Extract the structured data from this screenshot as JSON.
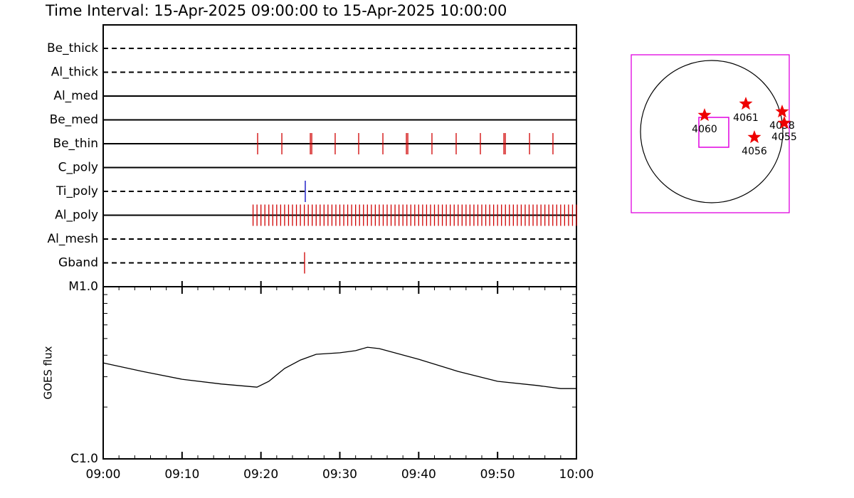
{
  "title": "Time Interval: 15-Apr-2025 09:00:00 to 15-Apr-2025 10:00:00",
  "chart_data": [
    {
      "type": "event",
      "xlim": [
        0,
        60
      ],
      "xticks": [
        0,
        10,
        20,
        30,
        40,
        50,
        60
      ],
      "series": [
        {
          "name": "Be_thick",
          "linestyle": "dashed",
          "x": []
        },
        {
          "name": "Al_thick",
          "linestyle": "dashed",
          "x": []
        },
        {
          "name": "Al_med",
          "linestyle": "solid",
          "x": []
        },
        {
          "name": "Be_med",
          "linestyle": "solid",
          "x": []
        },
        {
          "name": "Be_thin",
          "linestyle": "solid",
          "color": "#d00000",
          "x": [
            19.58,
            22.65,
            26.26,
            26.44,
            29.41,
            32.39,
            35.46,
            38.44,
            38.62,
            41.68,
            44.75,
            47.82,
            50.8,
            50.98,
            54.05,
            57.02
          ]
        },
        {
          "name": "C_poly",
          "linestyle": "solid",
          "x": []
        },
        {
          "name": "Ti_poly",
          "linestyle": "dashed",
          "color": "#0000c0",
          "x": [
            25.62
          ]
        },
        {
          "name": "Al_poly",
          "linestyle": "solid",
          "color": "#d00000",
          "x": [
            19,
            19.5,
            20,
            20.5,
            21,
            21.5,
            22,
            22.5,
            23,
            23.5,
            24,
            24.5,
            25,
            25.5,
            26,
            26.5,
            27,
            27.5,
            28,
            28.5,
            29,
            29.5,
            30,
            30.5,
            31,
            31.5,
            32,
            32.5,
            33,
            33.5,
            34,
            34.5,
            35,
            35.5,
            36,
            36.5,
            37,
            37.5,
            38,
            38.5,
            39,
            39.5,
            40,
            40.5,
            41,
            41.5,
            42,
            42.5,
            43,
            43.5,
            44,
            44.5,
            45,
            45.5,
            46,
            46.5,
            47,
            47.5,
            48,
            48.5,
            49,
            49.5,
            50,
            50.5,
            51,
            51.5,
            52,
            52.5,
            53,
            53.5,
            54,
            54.5,
            55,
            55.5,
            56,
            56.5,
            57,
            57.5,
            58,
            58.5,
            59,
            59.5,
            60
          ]
        },
        {
          "name": "Al_mesh",
          "linestyle": "dashed",
          "x": []
        },
        {
          "name": "Gband",
          "linestyle": "dashed",
          "color": "#d00000",
          "x": [
            25.53
          ]
        }
      ]
    },
    {
      "type": "line",
      "ylabel": "GOES flux",
      "log": true,
      "xlim": [
        0,
        60
      ],
      "xticks": [
        {
          "value": 0,
          "label": "09:00"
        },
        {
          "value": 10,
          "label": "09:10"
        },
        {
          "value": 20,
          "label": "09:20"
        },
        {
          "value": 30,
          "label": "09:30"
        },
        {
          "value": 40,
          "label": "09:40"
        },
        {
          "value": 50,
          "label": "09:50"
        },
        {
          "value": 60,
          "label": "10:00"
        }
      ],
      "xminorticks": [
        2,
        4,
        6,
        8,
        12,
        14,
        16,
        18,
        22,
        24,
        26,
        28,
        32,
        34,
        36,
        38,
        42,
        44,
        46,
        48,
        52,
        54,
        56,
        58
      ],
      "ylim": [
        1e-06,
        1e-05
      ],
      "yticks": [
        {
          "value": 1e-06,
          "label": "C1.0"
        },
        {
          "value": 1e-05,
          "label": "M1.0"
        }
      ],
      "yminorticks": [
        2e-06,
        3e-06,
        4e-06,
        5e-06,
        6e-06,
        7e-06,
        8e-06,
        9e-06
      ],
      "color": "#000000",
      "x": [
        0,
        5,
        10,
        15,
        19.5,
        21,
        23,
        25,
        27,
        30,
        32,
        33.5,
        35,
        40,
        45,
        50,
        55,
        58,
        60
      ],
      "values": [
        3.61e-06,
        3.22e-06,
        2.9e-06,
        2.72e-06,
        2.61e-06,
        2.82e-06,
        3.35e-06,
        3.75e-06,
        4.05e-06,
        4.13e-06,
        4.25e-06,
        4.45e-06,
        4.37e-06,
        3.79e-06,
        3.22e-06,
        2.82e-06,
        2.67e-06,
        2.56e-06,
        2.56e-06
      ]
    },
    {
      "type": "map",
      "frame_color": "#e000e0",
      "marker_color": "#ee0000",
      "regions": [
        "4060",
        "4061",
        "4058",
        "4055",
        "4056"
      ]
    }
  ]
}
